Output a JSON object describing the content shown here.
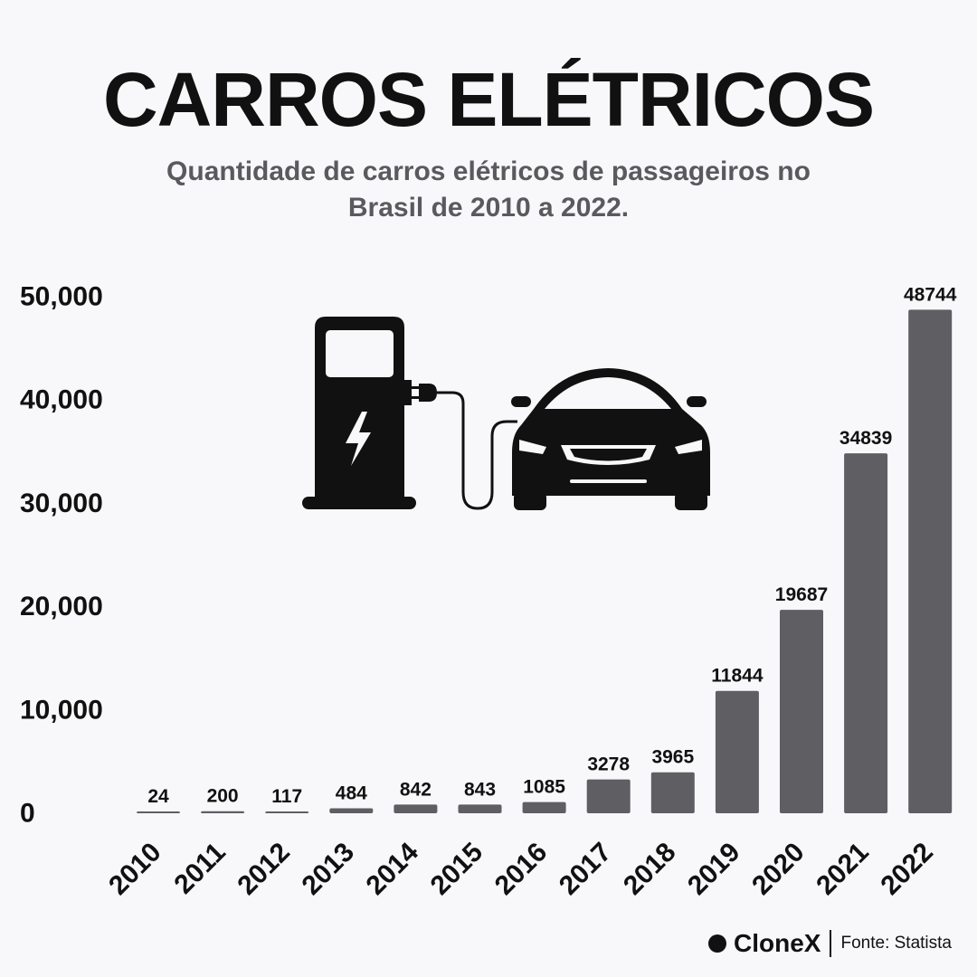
{
  "title": "CARROS ELÉTRICOS",
  "subtitle": "Quantidade de carros elétricos de passageiros no Brasil de 2010 a 2022.",
  "icon": "ev-charging-station-car-icon",
  "colors": {
    "bar": "#5f5e63",
    "text": "#111111",
    "subtitle": "#5a5a5e",
    "background": "#f8f8fa"
  },
  "footer": {
    "brand": "CloneX",
    "source": "Fonte: Statista"
  },
  "chart_data": {
    "type": "bar",
    "categories": [
      "2010",
      "2011",
      "2012",
      "2013",
      "2014",
      "2015",
      "2016",
      "2017",
      "2018",
      "2019",
      "2020",
      "2021",
      "2022"
    ],
    "values": [
      24,
      200,
      117,
      484,
      842,
      843,
      1085,
      3278,
      3965,
      11844,
      19687,
      34839,
      48744
    ],
    "data_labels": [
      "24",
      "200",
      "117",
      "484",
      "842",
      "843",
      "1085",
      "3278",
      "3965",
      "11844",
      "19687",
      "34839",
      "48744"
    ],
    "yticks": [
      0,
      10000,
      20000,
      30000,
      40000,
      50000
    ],
    "ytick_labels": [
      "0",
      "10,000",
      "20,000",
      "30,000",
      "40,000",
      "50,000"
    ],
    "ylim": [
      0,
      50000
    ],
    "grid": false,
    "xlabel": "",
    "ylabel": ""
  }
}
